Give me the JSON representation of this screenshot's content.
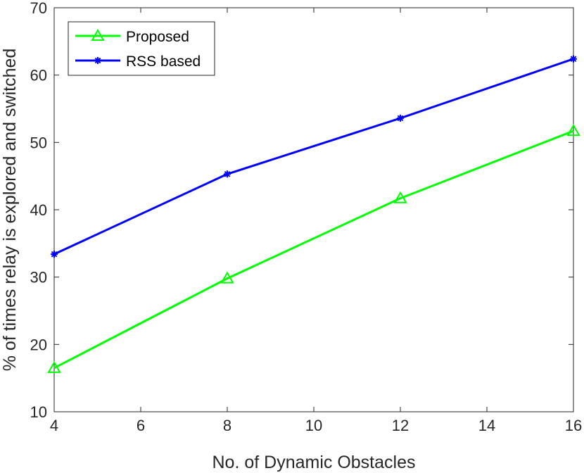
{
  "chart_data": {
    "type": "line",
    "title": "",
    "xlabel": "No. of Dynamic Obstacles",
    "ylabel": "% of times relay is explored and switched",
    "xlim": [
      4,
      16
    ],
    "ylim": [
      10,
      70
    ],
    "xticks": [
      4,
      6,
      8,
      10,
      12,
      14,
      16
    ],
    "yticks": [
      10,
      20,
      30,
      40,
      50,
      60,
      70
    ],
    "grid": false,
    "legend_position": "top-left",
    "x": [
      4,
      8,
      12,
      16
    ],
    "series": [
      {
        "name": "Proposed",
        "values": [
          16.5,
          29.8,
          41.7,
          51.7
        ],
        "color": "#00ff00",
        "marker": "triangle"
      },
      {
        "name": "RSS based",
        "values": [
          33.4,
          45.3,
          53.6,
          62.4
        ],
        "color": "#0000ff",
        "marker": "asterisk"
      }
    ]
  }
}
